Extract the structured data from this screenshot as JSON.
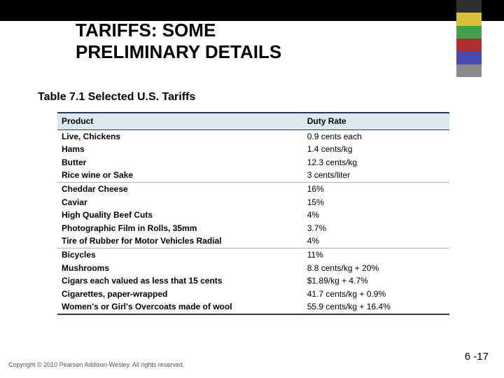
{
  "title_line1": "TARIFFS: SOME",
  "title_line2": "PRELIMINARY DETAILS",
  "table_caption": "Table 7.1   Selected U.S. Tariffs",
  "columns": [
    "Product",
    "Duty Rate"
  ],
  "rows": [
    {
      "product": "Live, Chickens",
      "rate": "0.9 cents each",
      "group_end": false
    },
    {
      "product": "Hams",
      "rate": "1.4 cents/kg",
      "group_end": false
    },
    {
      "product": "Butter",
      "rate": "12.3 cents/kg",
      "group_end": false
    },
    {
      "product": "Rice wine or Sake",
      "rate": "3 cents/liter",
      "group_end": true
    },
    {
      "product": "Cheddar Cheese",
      "rate": "16%",
      "group_end": false
    },
    {
      "product": "Caviar",
      "rate": "15%",
      "group_end": false
    },
    {
      "product": "High Quality Beef Cuts",
      "rate": "4%",
      "group_end": false
    },
    {
      "product": "Photographic Film in Rolls, 35mm",
      "rate": "3.7%",
      "group_end": false
    },
    {
      "product": "Tire of Rubber for Motor Vehicles Radial",
      "rate": "4%",
      "group_end": true
    },
    {
      "product": "Bicycles",
      "rate": "11%",
      "group_end": false
    },
    {
      "product": "Mushrooms",
      "rate": "8.8 cents/kg + 20%",
      "group_end": false
    },
    {
      "product": "Cigars each valued as less that 15 cents",
      "rate": "$1.89/kg + 4.7%",
      "group_end": false
    },
    {
      "product": "Cigarettes, paper-wrapped",
      "rate": "41.7 cents/kg + 0.9%",
      "group_end": false
    },
    {
      "product": "Women's or Girl's Overcoats made of wool",
      "rate": "55.9 cents/kg + 16.4%",
      "group_end": false
    }
  ],
  "footer": "Copyright © 2010 Pearson Addison-Wesley. All rights reserved.",
  "page_number": "6 -17",
  "colors": {
    "header_bg": "#dce8ef",
    "border": "#2a3a5a",
    "group_border": "#aab2c0",
    "deco": [
      "#2f2f2f",
      "#d8c238",
      "#3fa24a",
      "#b03030",
      "#4a4ab3",
      "#8a8a8a"
    ]
  }
}
